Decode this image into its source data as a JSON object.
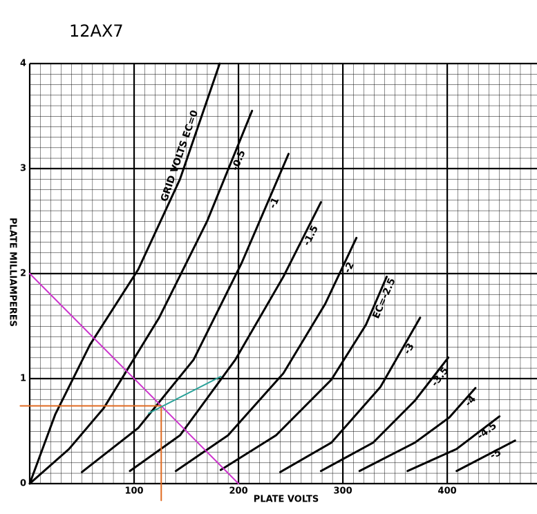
{
  "chart_data": {
    "type": "line",
    "title": "12AX7",
    "x_label": "PLATE VOLTS",
    "y_label": "PLATE MILLIAMPERES",
    "xlim": [
      0,
      486
    ],
    "ylim": [
      0,
      4
    ],
    "xticks": [
      0,
      100,
      200,
      300,
      400
    ],
    "yticks": [
      0,
      1,
      2,
      3,
      4
    ],
    "grid": true,
    "series": [
      {
        "name": "GRID VOLTS EC=0",
        "color": "#000000",
        "x": [
          0,
          24.5,
          57.6,
          104,
          144,
          182
        ],
        "values": [
          0,
          0.66,
          1.32,
          2.04,
          2.9,
          4.0
        ]
      },
      {
        "name": "-0.5",
        "color": "#000000",
        "x": [
          0,
          37.7,
          71,
          124,
          170,
          213
        ],
        "values": [
          0,
          0.33,
          0.72,
          1.58,
          2.5,
          3.55
        ]
      },
      {
        "name": "-1",
        "color": "#000000",
        "x": [
          50,
          104,
          157,
          203,
          248
        ],
        "values": [
          0.11,
          0.53,
          1.18,
          2.1,
          3.14
        ]
      },
      {
        "name": "-1.5",
        "color": "#000000",
        "x": [
          96,
          144,
          197,
          243,
          279
        ],
        "values": [
          0.12,
          0.46,
          1.18,
          1.97,
          2.68
        ]
      },
      {
        "name": "-2",
        "color": "#000000",
        "x": [
          140,
          190,
          243,
          283,
          313
        ],
        "values": [
          0.12,
          0.46,
          1.05,
          1.71,
          2.34
        ]
      },
      {
        "name": "EC=-2.5",
        "color": "#000000",
        "x": [
          183,
          236,
          289,
          322,
          342
        ],
        "values": [
          0.13,
          0.46,
          0.99,
          1.51,
          1.97
        ]
      },
      {
        "name": "-3",
        "color": "#000000",
        "x": [
          240,
          289,
          336,
          374
        ],
        "values": [
          0.11,
          0.39,
          0.92,
          1.58
        ]
      },
      {
        "name": "-3.5",
        "color": "#000000",
        "x": [
          279,
          329,
          369,
          401
        ],
        "values": [
          0.12,
          0.39,
          0.79,
          1.2
        ]
      },
      {
        "name": "-4",
        "color": "#000000",
        "x": [
          316,
          369,
          402,
          427
        ],
        "values": [
          0.12,
          0.39,
          0.63,
          0.91
        ]
      },
      {
        "name": "-4.5",
        "color": "#000000",
        "x": [
          362,
          409,
          450
        ],
        "values": [
          0.12,
          0.33,
          0.64
        ]
      },
      {
        "name": "-5",
        "color": "#000000",
        "x": [
          409,
          465
        ],
        "values": [
          0.12,
          0.41
        ]
      }
    ],
    "annotations": [
      {
        "color": "#cc33cc",
        "x": [
          0,
          200
        ],
        "values": [
          2,
          0
        ]
      },
      {
        "color": "#e06a20",
        "x": [
          -9,
          126
        ],
        "values": [
          0.74,
          0.74
        ]
      },
      {
        "color": "#e06a20",
        "x": [
          126,
          126
        ],
        "values": [
          0.74,
          -0.16
        ]
      },
      {
        "color": "#2aa198",
        "x": [
          114,
          183
        ],
        "values": [
          0.67,
          1.02
        ]
      }
    ]
  }
}
